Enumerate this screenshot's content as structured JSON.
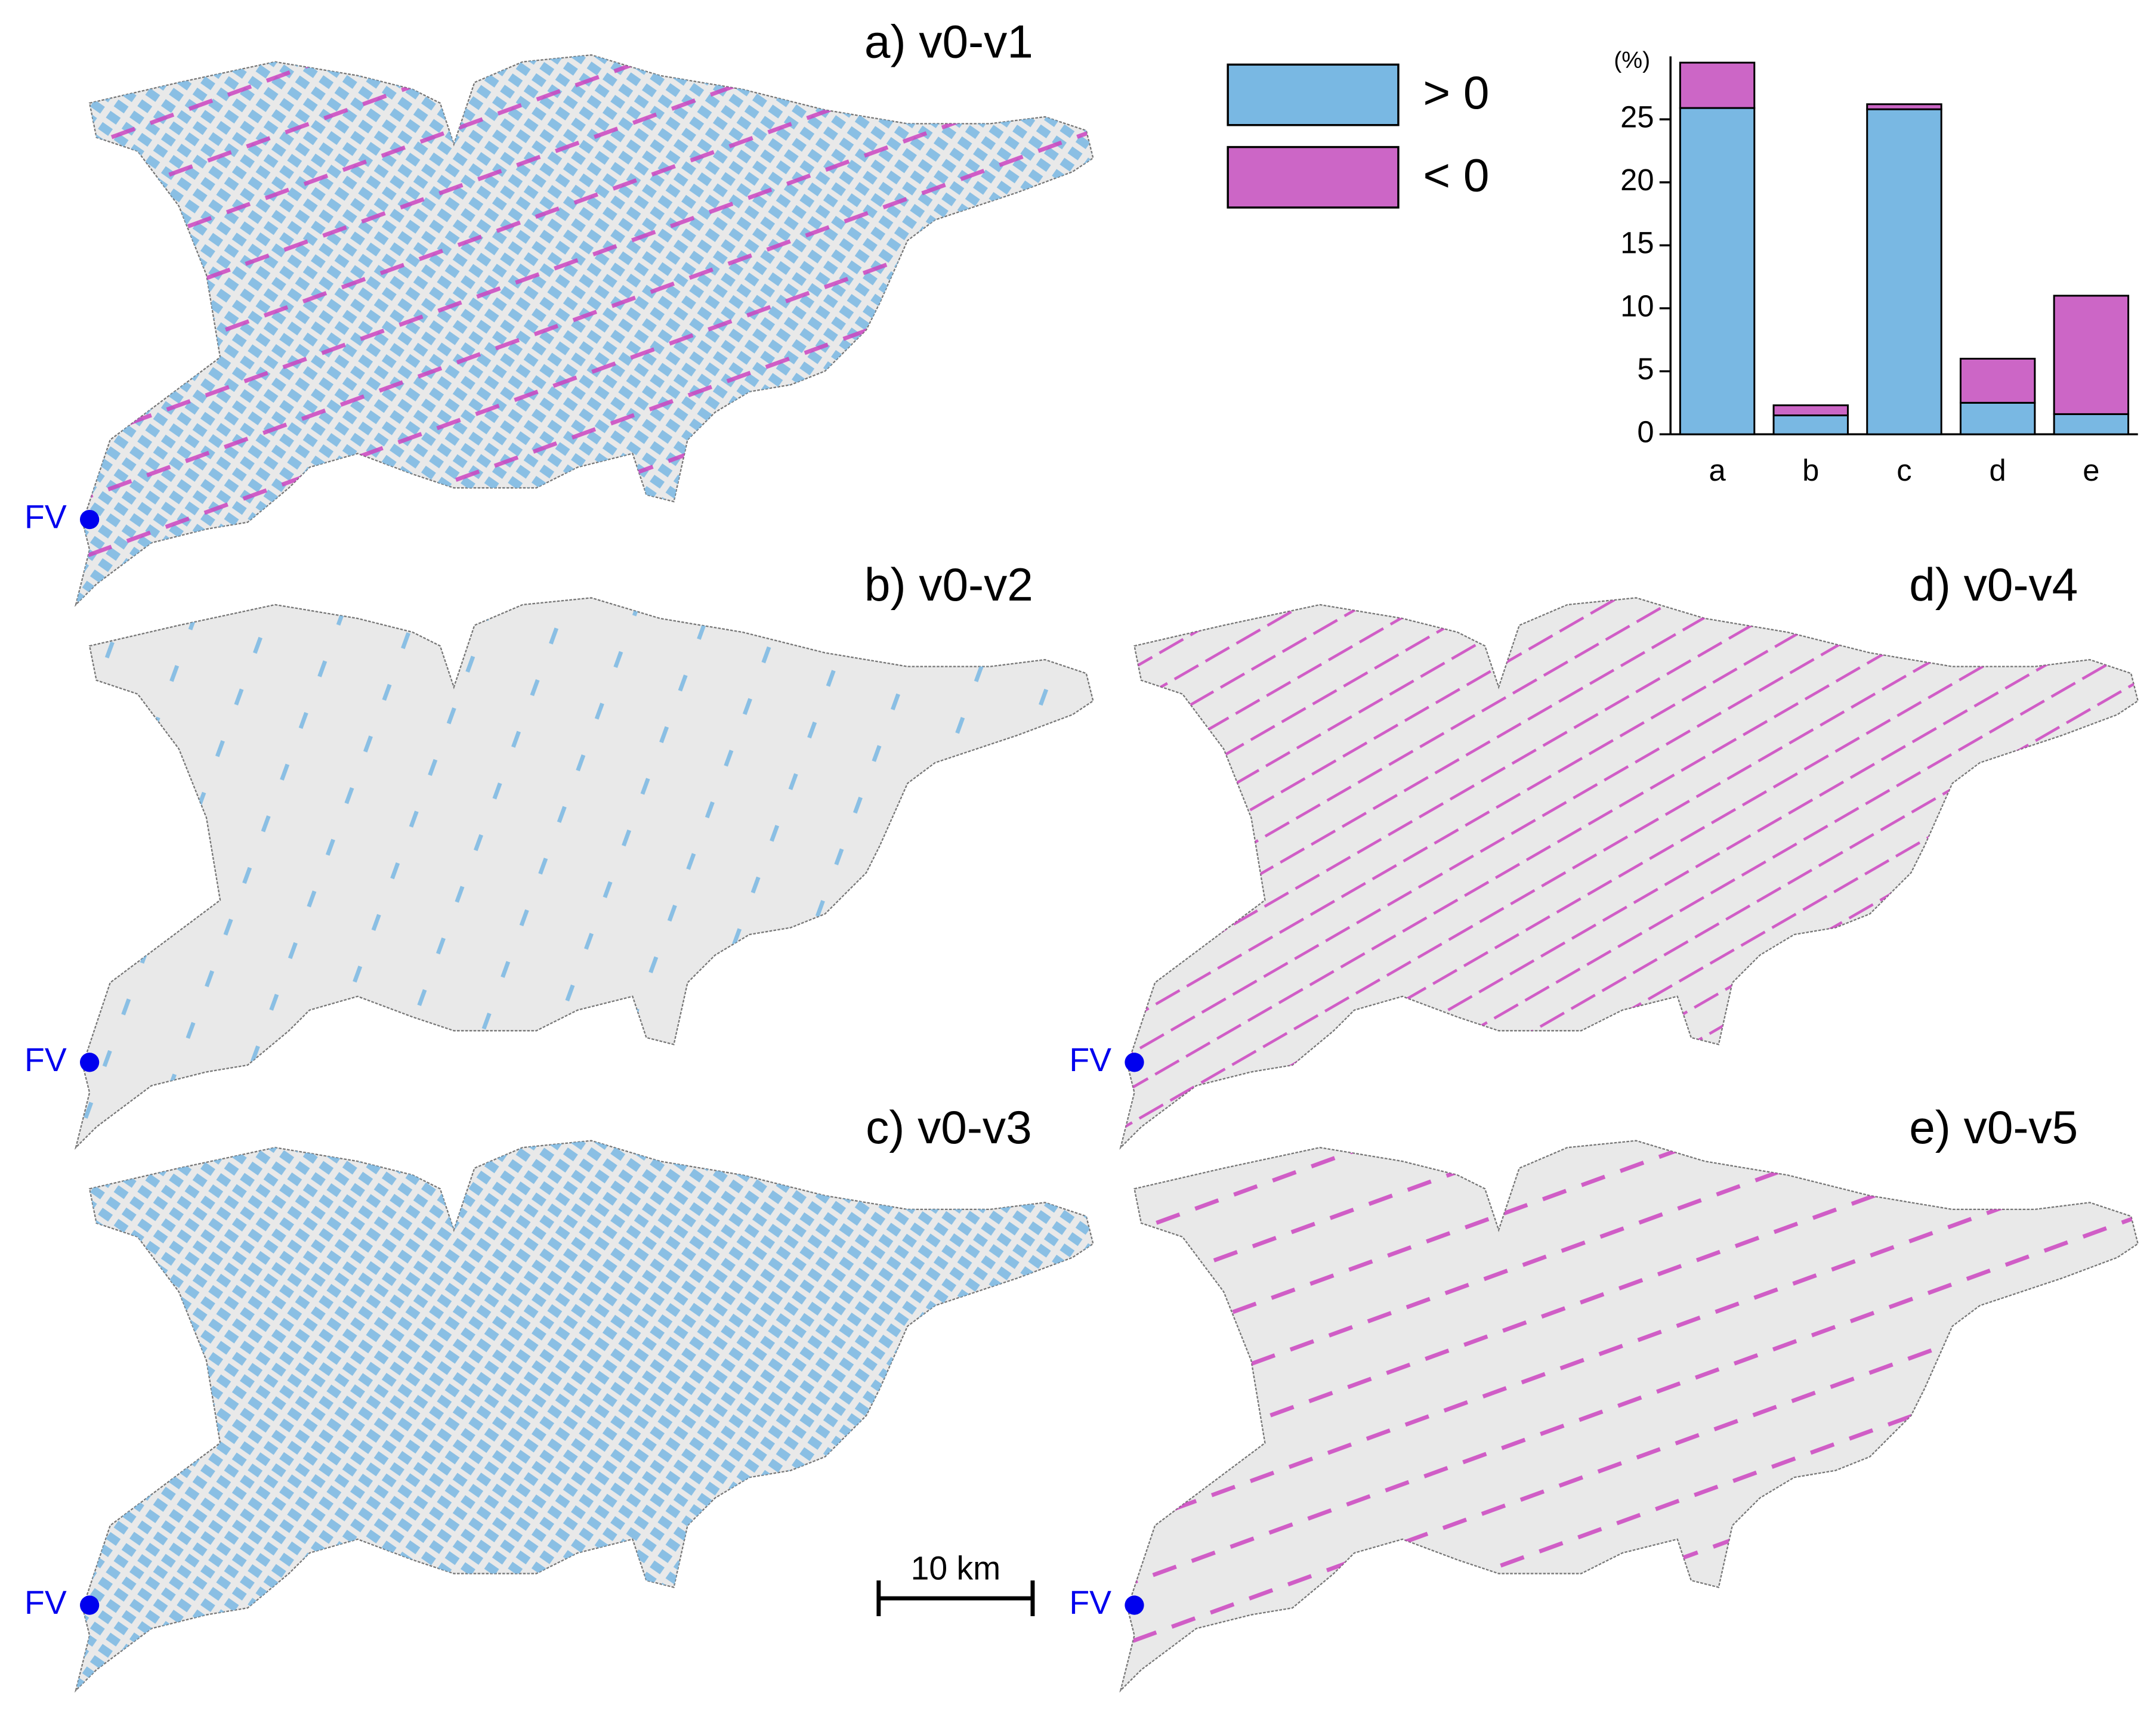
{
  "panels": [
    {
      "title": "a) v0-v1",
      "marker": "FV"
    },
    {
      "title": "b) v0-v2",
      "marker": "FV"
    },
    {
      "title": "c) v0-v3",
      "marker": "FV"
    },
    {
      "title": "d) v0-v4",
      "marker": "FV"
    },
    {
      "title": "e) v0-v5",
      "marker": "FV"
    }
  ],
  "scale_bar": "10 km",
  "chart_data": {
    "type": "bar",
    "stacked": true,
    "y_label": "(%)",
    "categories": [
      "a",
      "b",
      "c",
      "d",
      "e"
    ],
    "series": [
      {
        "name": "> 0",
        "color": "#79b8e3",
        "values": [
          25.9,
          1.5,
          25.8,
          2.5,
          1.6
        ]
      },
      {
        "name": "< 0",
        "color": "#cc66c6",
        "values": [
          3.6,
          0.8,
          0.4,
          3.5,
          9.4
        ]
      }
    ],
    "ylim": [
      0,
      30
    ],
    "yticks": [
      0,
      5,
      10,
      15,
      20,
      25
    ]
  }
}
